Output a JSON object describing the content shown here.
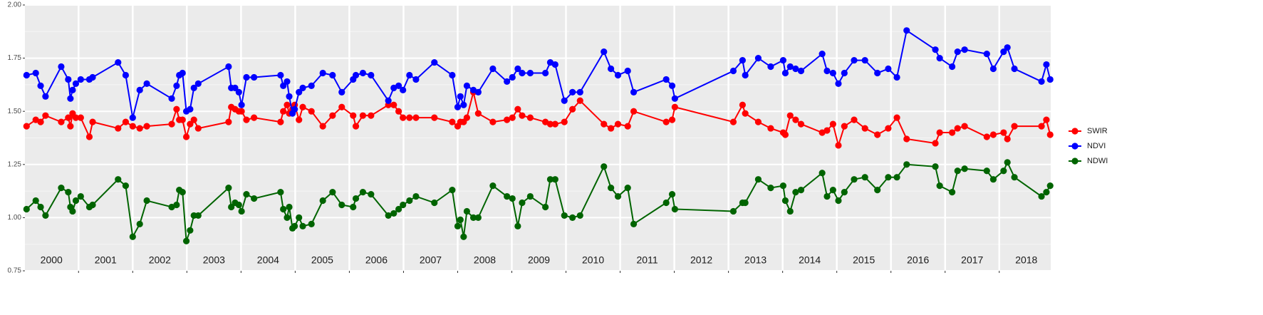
{
  "chart_data": {
    "type": "line",
    "xlim": [
      2000.01,
      2018.95
    ],
    "ylim": [
      0.75,
      2.0
    ],
    "yticks": [
      {
        "value": 0.75,
        "label": "0.75"
      },
      {
        "value": 1.0,
        "label": "1.00"
      },
      {
        "value": 1.25,
        "label": "1.25"
      },
      {
        "value": 1.5,
        "label": "1.50"
      },
      {
        "value": 1.75,
        "label": "1.75"
      },
      {
        "value": 2.0,
        "label": "2.00"
      }
    ],
    "y_minor_ticks": [
      0.875,
      1.125,
      1.375,
      1.625,
      1.875
    ],
    "xticks": [
      2001,
      2002,
      2003,
      2004,
      2005,
      2006,
      2007,
      2008,
      2009,
      2010,
      2011,
      2012,
      2013,
      2014,
      2015,
      2016,
      2017,
      2018
    ],
    "year_labels": [
      {
        "value": 2000.5,
        "label": "2000"
      },
      {
        "value": 2001.5,
        "label": "2001"
      },
      {
        "value": 2002.5,
        "label": "2002"
      },
      {
        "value": 2003.5,
        "label": "2003"
      },
      {
        "value": 2004.5,
        "label": "2004"
      },
      {
        "value": 2005.5,
        "label": "2005"
      },
      {
        "value": 2006.5,
        "label": "2006"
      },
      {
        "value": 2007.5,
        "label": "2007"
      },
      {
        "value": 2008.5,
        "label": "2008"
      },
      {
        "value": 2009.5,
        "label": "2009"
      },
      {
        "value": 2010.5,
        "label": "2010"
      },
      {
        "value": 2011.5,
        "label": "2011"
      },
      {
        "value": 2012.5,
        "label": "2012"
      },
      {
        "value": 2013.5,
        "label": "2013"
      },
      {
        "value": 2014.5,
        "label": "2014"
      },
      {
        "value": 2015.5,
        "label": "2015"
      },
      {
        "value": 2016.5,
        "label": "2016"
      },
      {
        "value": 2017.5,
        "label": "2017"
      },
      {
        "value": 2018.5,
        "label": "2018"
      }
    ],
    "grid": true,
    "legend": "right",
    "x": [
      2000.04,
      2000.21,
      2000.3,
      2000.39,
      2000.68,
      2000.81,
      2000.85,
      2000.89,
      2000.95,
      2001.04,
      2001.2,
      2001.26,
      2001.73,
      2001.87,
      2002.0,
      2002.13,
      2002.26,
      2002.72,
      2002.81,
      2002.86,
      2002.92,
      2002.99,
      2003.06,
      2003.13,
      2003.21,
      2003.77,
      2003.82,
      2003.89,
      2003.96,
      2004.01,
      2004.1,
      2004.24,
      2004.73,
      2004.78,
      2004.85,
      2004.89,
      2004.95,
      2004.99,
      2005.07,
      2005.14,
      2005.3,
      2005.51,
      2005.69,
      2005.86,
      2006.07,
      2006.12,
      2006.25,
      2006.4,
      2006.72,
      2006.82,
      2006.91,
      2006.99,
      2007.11,
      2007.23,
      2007.57,
      2007.9,
      2008.0,
      2008.05,
      2008.11,
      2008.17,
      2008.29,
      2008.38,
      2008.65,
      2008.91,
      2009.01,
      2009.11,
      2009.19,
      2009.34,
      2009.62,
      2009.71,
      2009.8,
      2009.97,
      2010.12,
      2010.26,
      2010.7,
      2010.83,
      2010.96,
      2011.14,
      2011.25,
      2011.85,
      2011.96,
      2012.01,
      2013.09,
      2013.26,
      2013.31,
      2013.55,
      2013.78,
      2014.01,
      2014.05,
      2014.14,
      2014.24,
      2014.34,
      2014.73,
      2014.82,
      2014.93,
      2015.03,
      2015.14,
      2015.32,
      2015.52,
      2015.75,
      2015.95,
      2016.11,
      2016.29,
      2016.82,
      2016.9,
      2017.13,
      2017.23,
      2017.36,
      2017.77,
      2017.89,
      2018.08,
      2018.15,
      2018.28,
      2018.78,
      2018.87,
      2018.94
    ],
    "series": [
      {
        "name": "SWIR",
        "color": "#ff0000",
        "values": [
          1.43,
          1.46,
          1.45,
          1.48,
          1.45,
          1.47,
          1.43,
          1.49,
          1.47,
          1.47,
          1.38,
          1.45,
          1.42,
          1.45,
          1.43,
          1.42,
          1.43,
          1.44,
          1.51,
          1.46,
          1.46,
          1.38,
          1.44,
          1.46,
          1.42,
          1.45,
          1.52,
          1.51,
          1.5,
          1.5,
          1.46,
          1.47,
          1.45,
          1.5,
          1.53,
          1.49,
          1.51,
          1.53,
          1.46,
          1.52,
          1.5,
          1.43,
          1.48,
          1.52,
          1.48,
          1.43,
          1.48,
          1.48,
          1.53,
          1.53,
          1.5,
          1.47,
          1.47,
          1.47,
          1.47,
          1.45,
          1.43,
          1.45,
          1.45,
          1.47,
          1.59,
          1.49,
          1.45,
          1.46,
          1.47,
          1.51,
          1.48,
          1.47,
          1.45,
          1.44,
          1.44,
          1.45,
          1.51,
          1.55,
          1.44,
          1.42,
          1.44,
          1.43,
          1.5,
          1.45,
          1.46,
          1.52,
          1.45,
          1.53,
          1.49,
          1.45,
          1.42,
          1.4,
          1.39,
          1.48,
          1.46,
          1.44,
          1.4,
          1.41,
          1.44,
          1.34,
          1.43,
          1.46,
          1.42,
          1.39,
          1.42,
          1.47,
          1.37,
          1.35,
          1.4,
          1.4,
          1.42,
          1.43,
          1.38,
          1.39,
          1.4,
          1.37,
          1.43,
          1.43,
          1.46,
          1.39
        ]
      },
      {
        "name": "NDVI",
        "color": "#0000ff",
        "values": [
          1.67,
          1.68,
          1.62,
          1.57,
          1.71,
          1.65,
          1.56,
          1.6,
          1.63,
          1.65,
          1.65,
          1.66,
          1.73,
          1.67,
          1.47,
          1.6,
          1.63,
          1.56,
          1.62,
          1.67,
          1.68,
          1.5,
          1.51,
          1.61,
          1.63,
          1.71,
          1.61,
          1.61,
          1.59,
          1.53,
          1.66,
          1.66,
          1.67,
          1.62,
          1.64,
          1.57,
          1.49,
          1.51,
          1.59,
          1.61,
          1.62,
          1.68,
          1.67,
          1.59,
          1.65,
          1.67,
          1.68,
          1.67,
          1.55,
          1.61,
          1.62,
          1.6,
          1.67,
          1.65,
          1.73,
          1.67,
          1.52,
          1.57,
          1.53,
          1.62,
          1.6,
          1.59,
          1.7,
          1.64,
          1.66,
          1.7,
          1.68,
          1.68,
          1.68,
          1.73,
          1.72,
          1.55,
          1.59,
          1.59,
          1.78,
          1.7,
          1.67,
          1.69,
          1.59,
          1.65,
          1.62,
          1.56,
          1.69,
          1.74,
          1.67,
          1.75,
          1.71,
          1.74,
          1.68,
          1.71,
          1.7,
          1.69,
          1.77,
          1.69,
          1.68,
          1.63,
          1.68,
          1.74,
          1.74,
          1.68,
          1.7,
          1.66,
          1.88,
          1.79,
          1.75,
          1.71,
          1.78,
          1.79,
          1.77,
          1.7,
          1.78,
          1.8,
          1.7,
          1.64,
          1.72,
          1.65
        ]
      },
      {
        "name": "NDWI",
        "color": "#006400",
        "values": [
          1.04,
          1.08,
          1.05,
          1.01,
          1.14,
          1.12,
          1.05,
          1.03,
          1.08,
          1.1,
          1.05,
          1.06,
          1.18,
          1.15,
          0.91,
          0.97,
          1.08,
          1.05,
          1.06,
          1.13,
          1.12,
          0.89,
          0.94,
          1.01,
          1.01,
          1.14,
          1.05,
          1.07,
          1.06,
          1.03,
          1.11,
          1.09,
          1.12,
          1.04,
          1.0,
          1.05,
          0.95,
          0.96,
          1.0,
          0.96,
          0.97,
          1.08,
          1.12,
          1.06,
          1.05,
          1.09,
          1.12,
          1.11,
          1.01,
          1.02,
          1.04,
          1.06,
          1.08,
          1.1,
          1.07,
          1.13,
          0.96,
          0.99,
          0.91,
          1.03,
          1.0,
          1.0,
          1.15,
          1.1,
          1.09,
          0.96,
          1.07,
          1.1,
          1.05,
          1.18,
          1.18,
          1.01,
          1.0,
          1.01,
          1.24,
          1.14,
          1.1,
          1.14,
          0.97,
          1.07,
          1.11,
          1.04,
          1.03,
          1.07,
          1.07,
          1.18,
          1.14,
          1.15,
          1.08,
          1.03,
          1.12,
          1.13,
          1.21,
          1.1,
          1.13,
          1.08,
          1.12,
          1.18,
          1.19,
          1.13,
          1.19,
          1.19,
          1.25,
          1.24,
          1.15,
          1.12,
          1.22,
          1.23,
          1.22,
          1.18,
          1.22,
          1.26,
          1.19,
          1.1,
          1.12,
          1.15
        ]
      }
    ]
  }
}
